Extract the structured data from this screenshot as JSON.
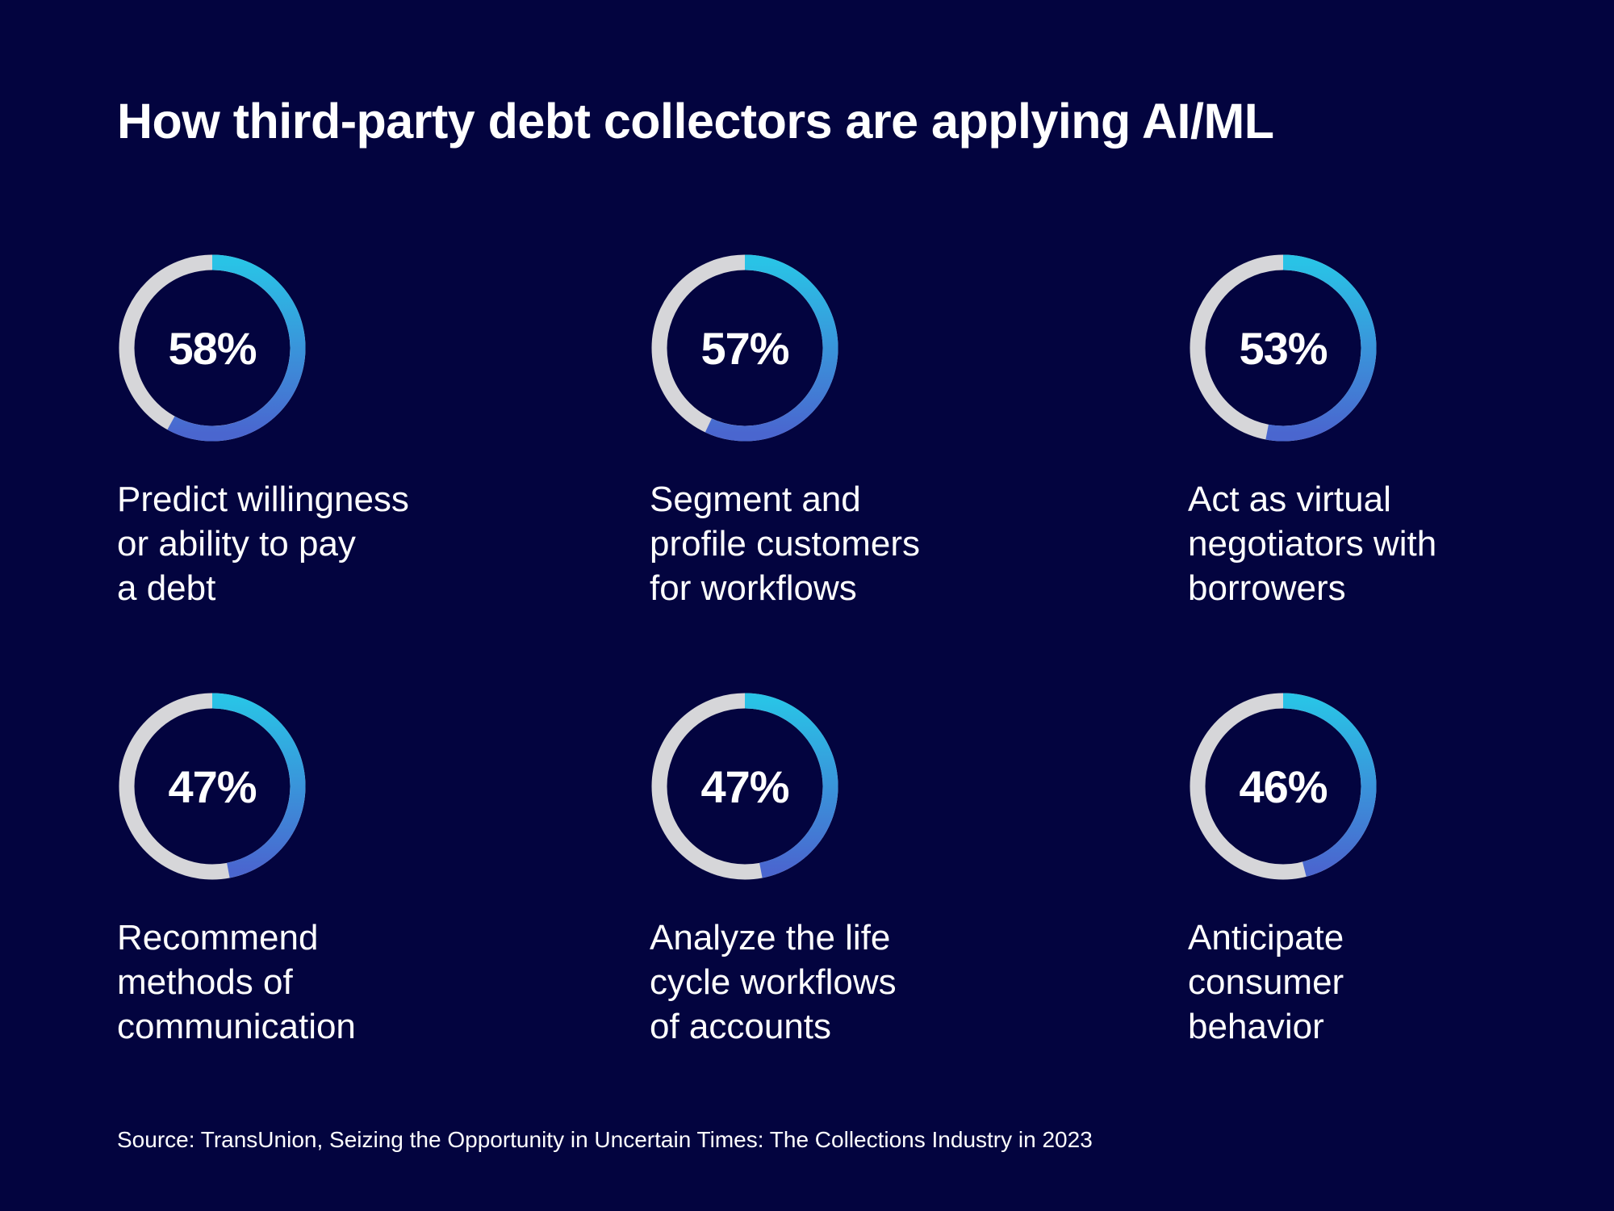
{
  "chart_data": {
    "type": "donut-grid",
    "title": "How third-party debt collectors are applying AI/ML",
    "items": [
      {
        "value": 58,
        "display": "58%",
        "label": "Predict willingness\nor ability to pay\na debt"
      },
      {
        "value": 57,
        "display": "57%",
        "label": "Segment and\nprofile customers\nfor workflows"
      },
      {
        "value": 53,
        "display": "53%",
        "label": "Act as virtual\nnegotiators with\nborrowers"
      },
      {
        "value": 47,
        "display": "47%",
        "label": "Recommend\nmethods of\ncommunication"
      },
      {
        "value": 47,
        "display": "47%",
        "label": "Analyze the life\ncycle workflows\nof accounts"
      },
      {
        "value": 46,
        "display": "46%",
        "label": "Anticipate\nconsumer\nbehavior"
      }
    ],
    "source": "Source: TransUnion, Seizing the Opportunity in Uncertain Times: The Collections Industry in 2023"
  },
  "colors": {
    "background": "#03043f",
    "track": "#d6d6d9",
    "arc_start": "#29c3e6",
    "arc_end": "#4a66cf",
    "text": "#ffffff"
  }
}
